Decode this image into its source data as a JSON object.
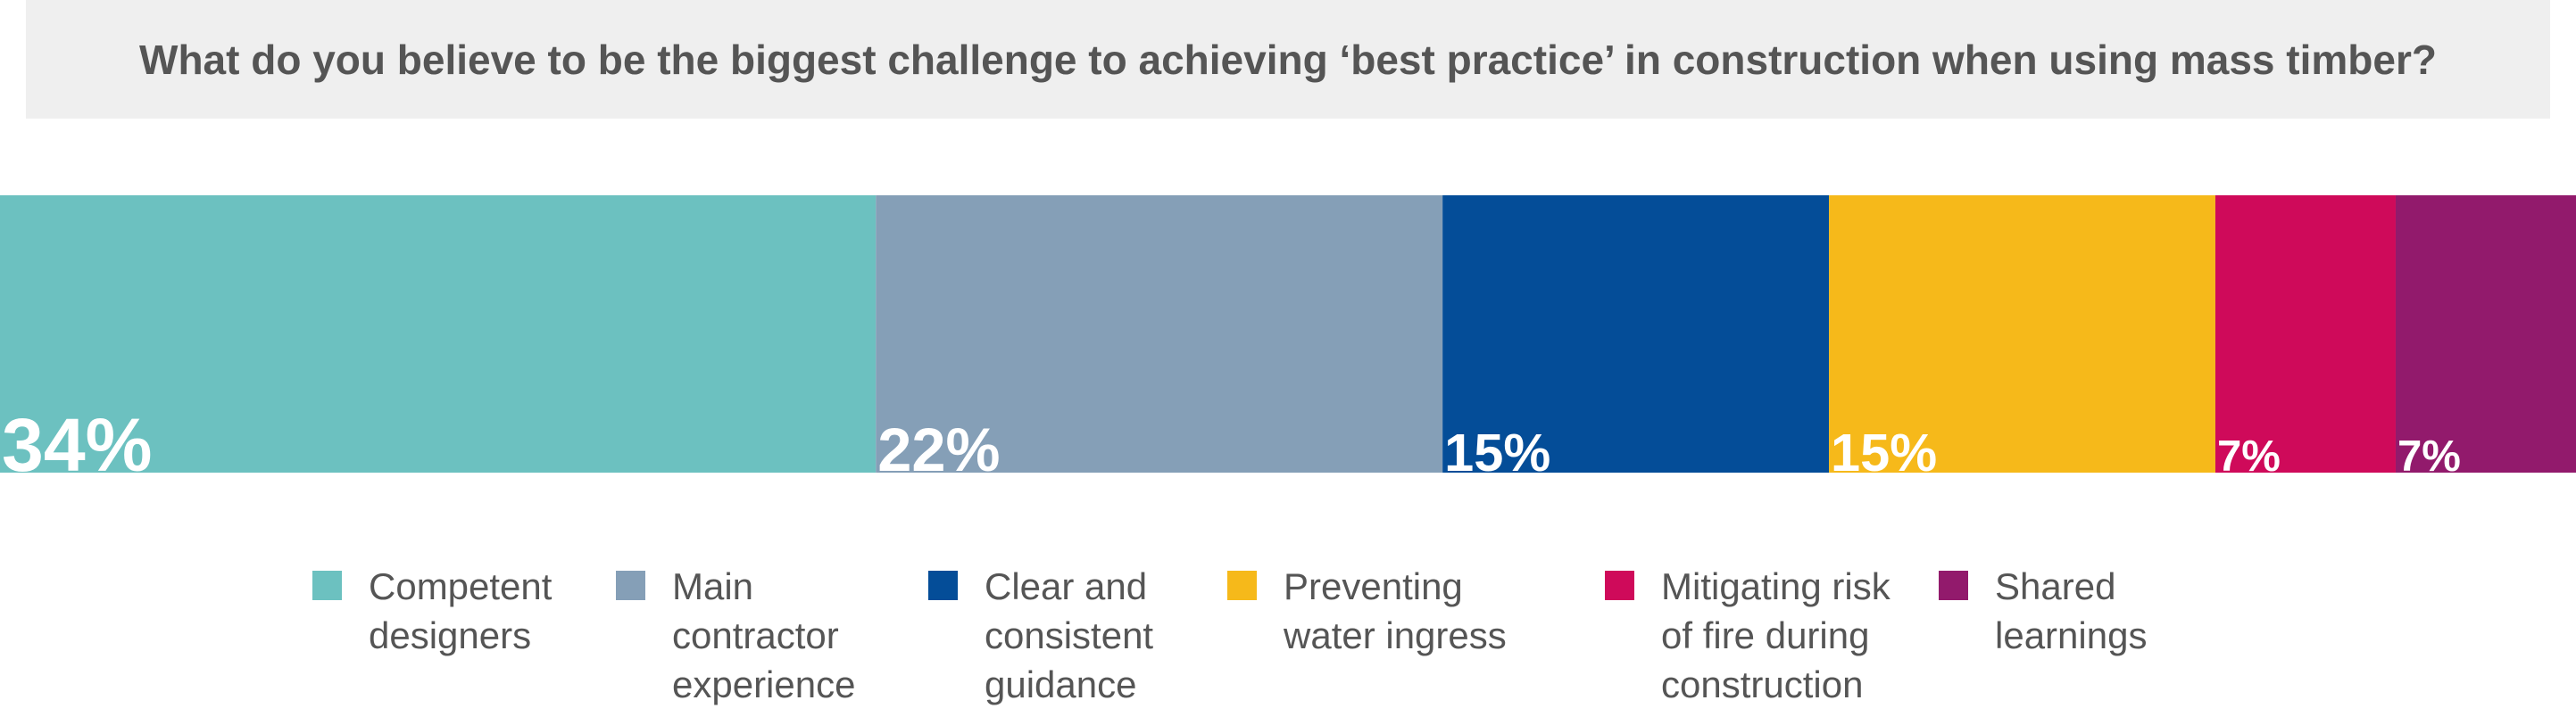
{
  "chart_data": {
    "type": "stacked-bar",
    "title": "What do you believe to be the biggest challenge to achieving ‘best practice’ in construction when using mass timber?",
    "xlim": [
      0,
      100
    ],
    "series": [
      {
        "name": "Competent designers",
        "color": "#6cc1c0",
        "values": [
          34
        ],
        "value_labels": [
          "34%"
        ]
      },
      {
        "name": "Main contractor experience",
        "color": "#859fb7",
        "values": [
          22
        ],
        "value_labels": [
          "22%"
        ]
      },
      {
        "name": "Clear and consistent guidance",
        "color": "#044d98",
        "values": [
          15
        ],
        "value_labels": [
          "15%"
        ]
      },
      {
        "name": "Preventing water ingress",
        "color": "#f6b91a",
        "values": [
          15
        ],
        "value_labels": [
          "15%"
        ]
      },
      {
        "name": "Mitigating risk of fire during construction",
        "color": "#cf0a5a",
        "values": [
          7
        ],
        "value_labels": [
          "7%"
        ]
      },
      {
        "name": "Shared learnings",
        "color": "#921a6c",
        "values": [
          7
        ],
        "value_labels": [
          "7%"
        ]
      }
    ]
  }
}
